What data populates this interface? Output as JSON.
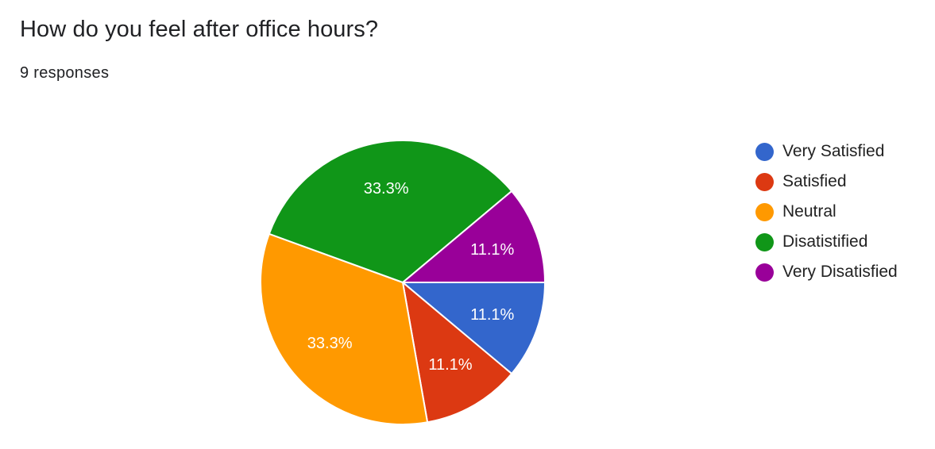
{
  "question": {
    "title": "How do you feel after office hours?",
    "responses_text": "9 responses"
  },
  "chart_data": {
    "type": "pie",
    "title": "How do you feel after office hours?",
    "total_responses": 9,
    "start_angle_deg": 0,
    "direction": "clockwise",
    "legend_position": "right",
    "slices": [
      {
        "label": "Very Satisfied",
        "count": 1,
        "percent": 11.1,
        "display": "11.1%",
        "color": "#3366cc"
      },
      {
        "label": "Satisfied",
        "count": 1,
        "percent": 11.1,
        "display": "11.1%",
        "color": "#dc3912"
      },
      {
        "label": "Neutral",
        "count": 3,
        "percent": 33.3,
        "display": "33.3%",
        "color": "#ff9900"
      },
      {
        "label": "Disatistified",
        "count": 3,
        "percent": 33.3,
        "display": "33.3%",
        "color": "#109618"
      },
      {
        "label": "Very Disatisfied",
        "count": 1,
        "percent": 11.1,
        "display": "11.1%",
        "color": "#990099"
      }
    ]
  },
  "legend": {
    "items": [
      {
        "label": "Very Satisfied",
        "color": "#3366cc"
      },
      {
        "label": "Satisfied",
        "color": "#dc3912"
      },
      {
        "label": "Neutral",
        "color": "#ff9900"
      },
      {
        "label": "Disatistified",
        "color": "#109618"
      },
      {
        "label": "Very Disatisfied",
        "color": "#990099"
      }
    ]
  }
}
